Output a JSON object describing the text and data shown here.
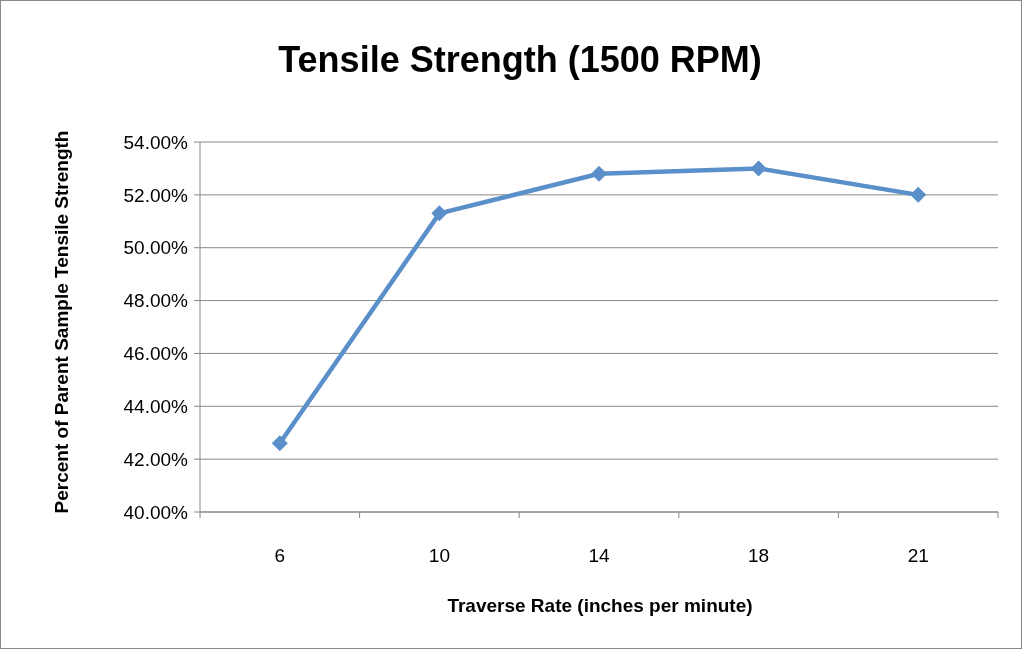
{
  "chart_data": {
    "type": "line",
    "title": "Tensile Strength (1500 RPM)",
    "xlabel": "Traverse Rate (inches per minute)",
    "ylabel": "Percent of Parent Sample Tensile Strength",
    "categories": [
      "6",
      "10",
      "14",
      "18",
      "21"
    ],
    "series": [
      {
        "color": "#5b8fc9",
        "values": [
          42.6,
          51.3,
          52.8,
          53.0,
          52.0
        ]
      }
    ],
    "ylim": [
      40,
      54
    ],
    "yticks": [
      {
        "value": 40,
        "label": "40.00%"
      },
      {
        "value": 42,
        "label": "42.00%"
      },
      {
        "value": 44,
        "label": "44.00%"
      },
      {
        "value": 46,
        "label": "46.00%"
      },
      {
        "value": 48,
        "label": "48.00%"
      },
      {
        "value": 50,
        "label": "50.00%"
      },
      {
        "value": 52,
        "label": "52.00%"
      },
      {
        "value": 54,
        "label": "54.00%"
      }
    ],
    "grid": "y",
    "marker": "diamond",
    "line_style": "solid"
  }
}
